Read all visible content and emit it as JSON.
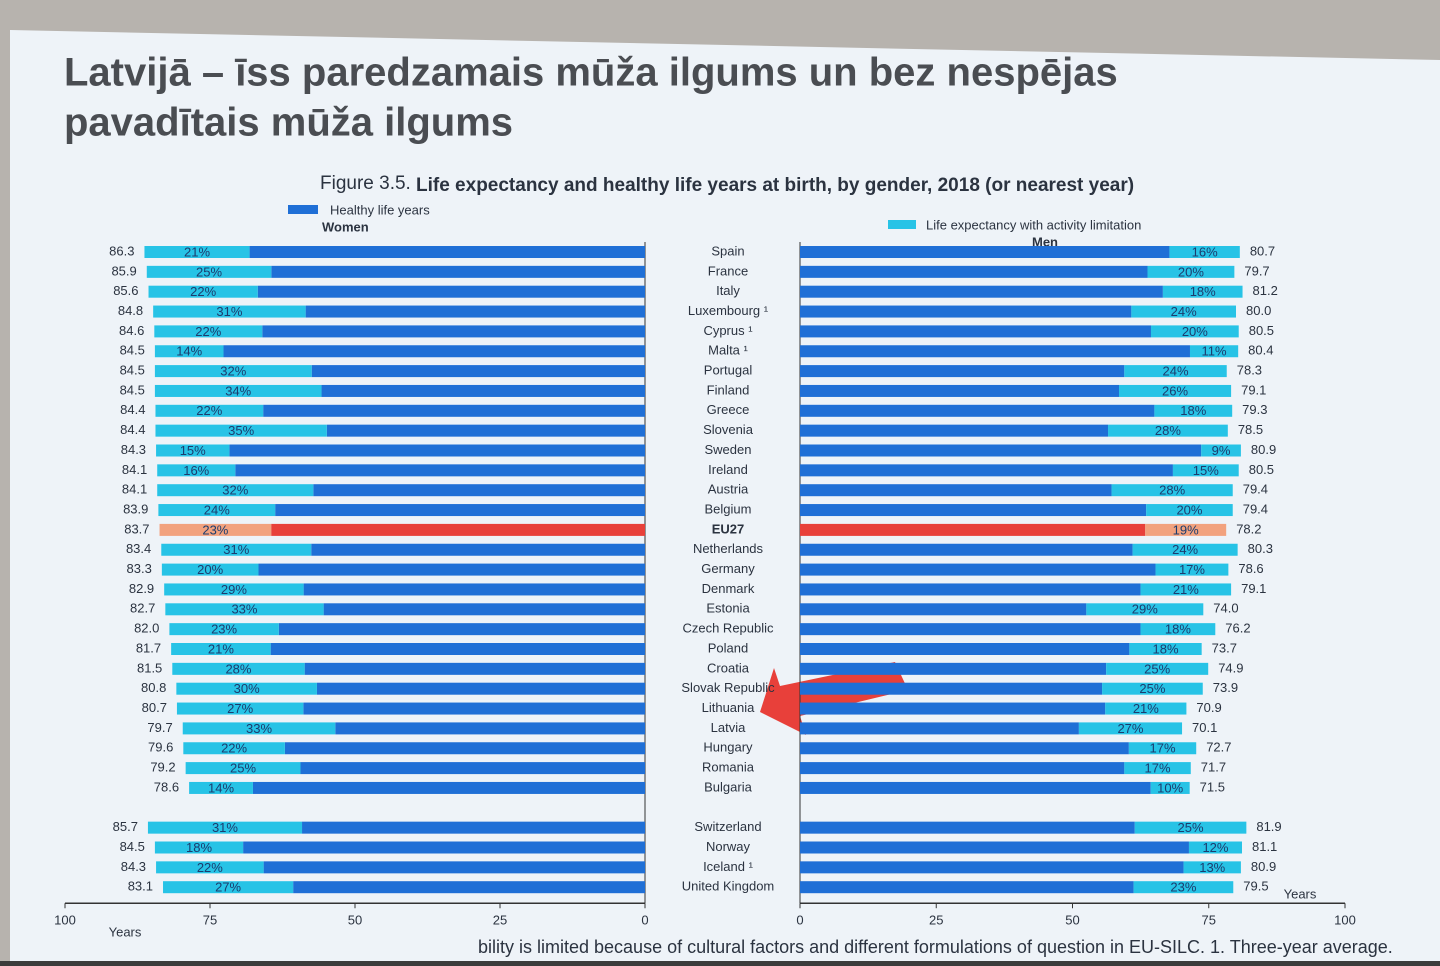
{
  "slide_title": [
    "Latvijā – īss paredzamais mūža ilgums un bez nespējas",
    "pavadītais mūža ilgums"
  ],
  "chart_data": {
    "type": "butterfly",
    "figure_number": "Figure 3.5.",
    "title": "Life expectancy and healthy life years at birth, by gender, 2018 (or nearest year)",
    "legend": [
      {
        "name": "Healthy life years",
        "color": "#1f6fd6"
      },
      {
        "name": "Life expectancy with activity limitation",
        "color": "#27c3e6"
      }
    ],
    "categories": [
      "Spain",
      "France",
      "Italy",
      "Luxembourg ¹",
      "Cyprus ¹",
      "Malta ¹",
      "Portugal",
      "Finland",
      "Greece",
      "Slovenia",
      "Sweden",
      "Ireland",
      "Austria",
      "Belgium",
      "EU27",
      "Netherlands",
      "Germany",
      "Denmark",
      "Estonia",
      "Czech Republic",
      "Poland",
      "Croatia",
      "Slovak Republic",
      "Lithuania",
      "Latvia",
      "Hungary",
      "Romania",
      "Bulgaria",
      null,
      "Switzerland",
      "Norway",
      "Iceland ¹",
      "United Kingdom"
    ],
    "highlight": {
      "category": "EU27",
      "color": "#e8403a",
      "limitation_color": "#f2a27e"
    },
    "xlim": [
      0,
      100
    ],
    "xticks": [
      0,
      25,
      50,
      75,
      100
    ],
    "xlabel": "Years",
    "series": [
      {
        "name": "Women",
        "values": [
          86.3,
          85.9,
          85.6,
          84.8,
          84.6,
          84.5,
          84.5,
          84.5,
          84.4,
          84.4,
          84.3,
          84.1,
          84.1,
          83.9,
          83.7,
          83.4,
          83.3,
          82.9,
          82.7,
          82.0,
          81.7,
          81.5,
          80.8,
          80.7,
          79.7,
          79.6,
          79.2,
          78.6,
          null,
          85.7,
          84.5,
          84.3,
          83.1
        ],
        "value_labels": [
          "86.3",
          "85.9",
          "85.6",
          "84.8",
          "84.6",
          "84.5",
          "84.5",
          "84.5",
          "84.4",
          "84.4",
          "84.3",
          "84.1",
          "84.1",
          "83.9",
          "83.7",
          "83.4",
          "83.3",
          "82.9",
          "82.7",
          "82.0",
          "81.7",
          "81.5",
          "80.8",
          "80.7",
          "79.7",
          "79.6",
          "79.2",
          "78.6",
          null,
          "85.7",
          "84.5",
          "84.3",
          "83.1"
        ],
        "limitation_share": [
          21,
          25,
          22,
          31,
          22,
          14,
          32,
          34,
          22,
          35,
          15,
          16,
          32,
          24,
          23,
          31,
          20,
          29,
          33,
          23,
          21,
          28,
          30,
          27,
          33,
          22,
          25,
          14,
          null,
          31,
          18,
          22,
          27
        ],
        "limitation_labels": [
          "21%",
          "25%",
          "22%",
          "31%",
          "22%",
          "14%",
          "32%",
          "34%",
          "22%",
          "35%",
          "15%",
          "16%",
          "32%",
          "24%",
          "23%",
          "31%",
          "20%",
          "29%",
          "33%",
          "23%",
          "21%",
          "28%",
          "30%",
          "27%",
          "33%",
          "22%",
          "25%",
          "14%",
          null,
          "31%",
          "18%",
          "22%",
          "27%"
        ]
      },
      {
        "name": "Men",
        "values": [
          80.7,
          79.7,
          81.2,
          80.0,
          80.5,
          80.4,
          78.3,
          79.1,
          79.3,
          78.5,
          80.9,
          80.5,
          79.4,
          79.4,
          78.2,
          80.3,
          78.6,
          79.1,
          74.0,
          76.2,
          73.7,
          74.9,
          73.9,
          70.9,
          70.1,
          72.7,
          71.7,
          71.5,
          null,
          81.9,
          81.1,
          80.9,
          79.5
        ],
        "value_labels": [
          "80.7",
          "79.7",
          "81.2",
          "80.0",
          "80.5",
          "80.4",
          "78.3",
          "79.1",
          "79.3",
          "78.5",
          "80.9",
          "80.5",
          "79.4",
          "79.4",
          "78.2",
          "80.3",
          "78.6",
          "79.1",
          "74.0",
          "76.2",
          "73.7",
          "74.9",
          "73.9",
          "70.9",
          "70.1",
          "72.7",
          "71.7",
          "71.5",
          null,
          "81.9",
          "81.1",
          "80.9",
          "79.5"
        ],
        "limitation_share": [
          16,
          20,
          18,
          24,
          20,
          11,
          24,
          26,
          18,
          28,
          9,
          15,
          28,
          20,
          19,
          24,
          17,
          21,
          29,
          18,
          18,
          25,
          25,
          21,
          27,
          17,
          17,
          10,
          null,
          25,
          12,
          13,
          23
        ],
        "limitation_labels": [
          "16%",
          "20%",
          "18%",
          "24%",
          "20%",
          "11%",
          "24%",
          "26%",
          "18%",
          "28%",
          "9%",
          "15%",
          "28%",
          "20%",
          "19%",
          "24%",
          "17%",
          "21%",
          "29%",
          "18%",
          "18%",
          "25%",
          "25%",
          "21%",
          "27%",
          "17%",
          "17%",
          "10%",
          null,
          "25%",
          "12%",
          "13%",
          "23%"
        ]
      }
    ],
    "footnote": "bility is limited because of cultural factors and different formulations of question in EU-SILC. 1. Three-year average."
  }
}
